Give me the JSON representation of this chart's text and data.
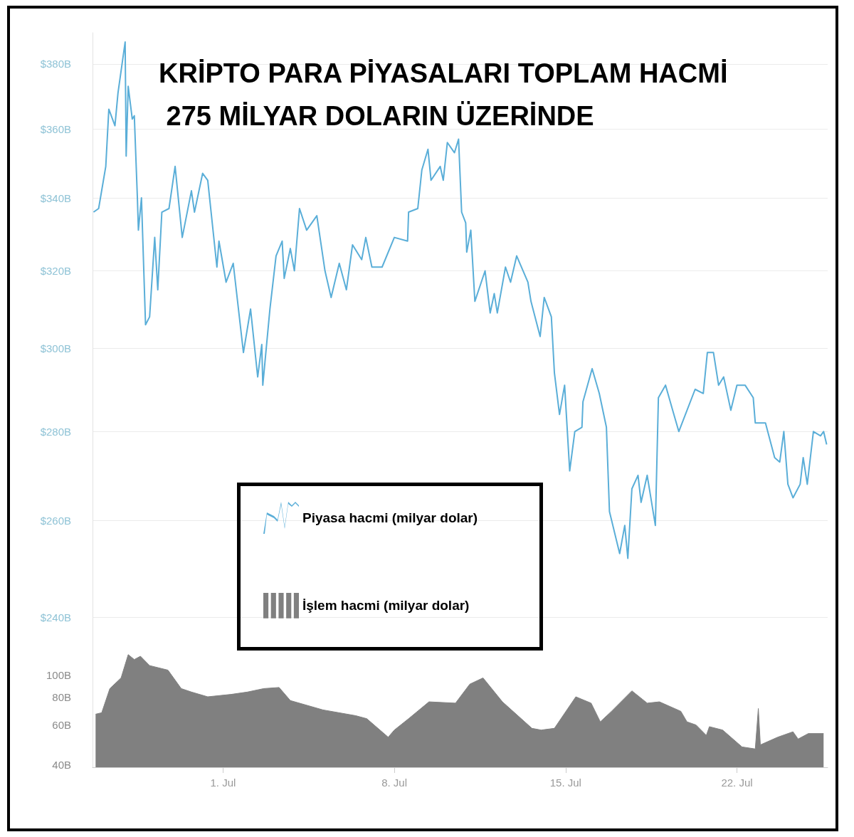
{
  "chart_data": [
    {
      "type": "line",
      "title": "KRİPTO PARA PİYASALARI TOPLAM HACMİ 275 MİLYAR DOLARIN ÜZERİNDE",
      "x": [
        "--06-25T17:00",
        "--06-25T22:00",
        "--06-26T05:00",
        "--06-26T08:00",
        "--06-26T14:00",
        "--06-26T17:00",
        "--06-27T00:00",
        "--06-27T01:00",
        "--06-27T03:00",
        "--06-27T07:00",
        "--06-27T09:00",
        "--06-27T12:00",
        "--06-27T13:00",
        "--06-27T16:00",
        "--06-27T20:00",
        "--06-28T00:00",
        "--06-28T05:00",
        "--06-28T08:00",
        "--06-28T12:00",
        "--06-28T19:00",
        "--06-29T01:00",
        "--06-29T08:00",
        "--06-29T17:00",
        "--06-29T20:00",
        "--06-30T04:00",
        "--06-30T09:00",
        "--06-30T18:00",
        "--06-30T20:00",
        "--07-01T03:00",
        "--07-01T10:00",
        "--07-01T20:00",
        "--07-02T03:00",
        "--07-02T10:00",
        "--07-02T14:00",
        "--07-02T15:00",
        "--07-02T22:00",
        "--07-03T04:00",
        "--07-03T10:00",
        "--07-03T12:00",
        "--07-03T18:00",
        "--07-03T22:00",
        "--07-04T03:00",
        "--07-04T10:00",
        "--07-04T20:00",
        "--07-05T04:00",
        "--07-05T10:00",
        "--07-05T18:00",
        "--07-06T01:00",
        "--07-06T07:00",
        "--07-06T16:00",
        "--07-06T20:00",
        "--07-07T02:00",
        "--07-07T12:00",
        "--07-08T00:00",
        "--07-08T13:00",
        "--07-08T14:00",
        "--07-08T23:00",
        "--07-09T03:00",
        "--07-09T09:00",
        "--07-09T12:00",
        "--07-09T21:00",
        "--07-10T00:00",
        "--07-10T04:00",
        "--07-10T11:00",
        "--07-10T15:00",
        "--07-10T18:00",
        "--07-10T22:00",
        "--07-10T23:00",
        "--07-11T03:00",
        "--07-11T07:00",
        "--07-11T17:00",
        "--07-11T22:00",
        "--07-12T02:00",
        "--07-12T05:00",
        "--07-12T13:00",
        "--07-12T18:00",
        "--07-13T00:00",
        "--07-13T11:00",
        "--07-13T14:00",
        "--07-13T23:00",
        "--07-14T03:00",
        "--07-14T10:00",
        "--07-14T13:00",
        "--07-14T18:00",
        "--07-14T23:00",
        "--07-15T04:00",
        "--07-15T09:00",
        "--07-15T16:00",
        "--07-15T17:00",
        "--07-16T02:00",
        "--07-16T09:00",
        "--07-16T16:00",
        "--07-16T19:00",
        "--07-17T05:00",
        "--07-17T10:00",
        "--07-17T13:00",
        "--07-17T17:00",
        "--07-17T23:00",
        "--07-18T02:00",
        "--07-18T08:00",
        "--07-18T16:00",
        "--07-18T19:00",
        "--07-19T02:00",
        "--07-19T09:00",
        "--07-19T15:00",
        "--07-20T07:00",
        "--07-20T15:00",
        "--07-20T19:00",
        "--07-21T01:00",
        "--07-21T06:00",
        "--07-21T11:00",
        "--07-21T18:00",
        "--07-22T00:00",
        "--07-22T08:00",
        "--07-22T16:00",
        "--07-22T18:00",
        "--07-23T04:00",
        "--07-23T13:00",
        "--07-23T18:00",
        "--07-23T22:00",
        "--07-24T02:00",
        "--07-24T07:00",
        "--07-24T14:00",
        "--07-24T17:00",
        "--07-24T21:00",
        "--07-25T03:00",
        "--07-25T10:00",
        "--07-25T13:00",
        "--07-25T16:00"
      ],
      "series": [
        {
          "name": "Piyasa hacmi (milyar dolar)",
          "color": "#5aaed8",
          "values": [
            336,
            337,
            349,
            366,
            361,
            371,
            387,
            352,
            373,
            363,
            364,
            340,
            331,
            340,
            306,
            308,
            329,
            315,
            336,
            337,
            349,
            329,
            342,
            336,
            347,
            345,
            321,
            328,
            317,
            322,
            299,
            310,
            293,
            301,
            291,
            310,
            324,
            328,
            318,
            326,
            320,
            337,
            331,
            335,
            320,
            313,
            322,
            315,
            327,
            323,
            329,
            321,
            321,
            329,
            328,
            336,
            337,
            348,
            354,
            345,
            349,
            345,
            356,
            353,
            357,
            336,
            333,
            325,
            331,
            312,
            320,
            309,
            314,
            309,
            321,
            317,
            324,
            317,
            312,
            303,
            313,
            308,
            294,
            284,
            291,
            271,
            280,
            281,
            287,
            295,
            289,
            281,
            262,
            253,
            259,
            252,
            267,
            270,
            264,
            270,
            259,
            288,
            291,
            285,
            280,
            290,
            289,
            299,
            299,
            291,
            293,
            285,
            291,
            291,
            288,
            282,
            282,
            274,
            273,
            280,
            268,
            265,
            268,
            274,
            268,
            280,
            279,
            280,
            277
          ]
        }
      ],
      "xlim": [
        "--06-25T16:00",
        "--07-25T17:00"
      ],
      "ylim": [
        240,
        390
      ],
      "yticks": [
        {
          "value": 240,
          "label": "$240B"
        },
        {
          "value": 260,
          "label": "$260B"
        },
        {
          "value": 280,
          "label": "$280B"
        },
        {
          "value": 300,
          "label": "$300B"
        },
        {
          "value": 320,
          "label": "$320B"
        },
        {
          "value": 340,
          "label": "$340B"
        },
        {
          "value": 360,
          "label": "$360B"
        },
        {
          "value": 380,
          "label": "$380B"
        }
      ],
      "log": "y",
      "grid": "y",
      "legend": "bottom left",
      "tick_labels": "y",
      "marker": "none"
    },
    {
      "type": "area",
      "x": [
        "--06-25T19:00",
        "--06-26T01:00",
        "--06-26T09:00",
        "--06-26T20:00",
        "--06-27T03:00",
        "--06-27T09:00",
        "--06-27T15:00",
        "--06-28T00:00",
        "--06-28T18:00",
        "--06-29T07:00",
        "--06-29T17:00",
        "--06-30T09:00",
        "--07-01T08:00",
        "--07-02T00:00",
        "--07-02T16:00",
        "--07-03T07:00",
        "--07-03T18:00",
        "--07-05T02:00",
        "--07-06T10:00",
        "--07-06T21:00",
        "--07-07T18:00",
        "--07-08T00:00",
        "--07-08T14:00",
        "--07-09T10:00",
        "--07-10T12:00",
        "--07-11T02:00",
        "--07-11T15:00",
        "--07-12T10:00",
        "--07-13T15:00",
        "--07-14T00:00",
        "--07-14T13:00",
        "--07-15T10:00",
        "--07-16T01:00",
        "--07-16T10:00",
        "--07-16T21:00",
        "--07-17T17:00",
        "--07-18T08:00",
        "--07-18T20:00",
        "--07-19T17:00",
        "--07-19T23:00",
        "--07-20T08:00",
        "--07-20T18:00",
        "--07-20T21:00",
        "--07-21T10:00",
        "--07-22T05:00",
        "--07-22T18:00",
        "--07-22T21:00",
        "--07-22T23:00",
        "--07-23T16:00",
        "--07-24T07:00",
        "--07-24T12:00",
        "--07-24T22:00",
        "--07-25T13:00"
      ],
      "series": [
        {
          "name": "İşlem hacmi (milyar dolar)",
          "color": "#808080",
          "values": [
            67,
            68,
            87,
            97,
            123,
            117,
            121,
            110,
            105,
            87,
            84,
            80,
            82,
            84,
            87,
            88,
            77,
            70,
            66,
            64,
            53,
            57,
            64,
            76,
            75,
            91,
            97,
            76,
            58,
            57,
            58,
            80,
            75,
            62,
            69,
            85,
            75,
            76,
            69,
            62,
            60,
            54,
            59,
            57,
            48,
            47,
            71,
            49,
            53,
            56,
            52,
            55,
            55
          ]
        }
      ],
      "xlim": [
        "--06-25T16:00",
        "--07-25T17:00"
      ],
      "xticks": [
        {
          "value": "--07-01",
          "label": "1. Jul"
        },
        {
          "value": "--07-08",
          "label": "8. Jul"
        },
        {
          "value": "--07-15",
          "label": "15. Jul"
        },
        {
          "value": "--07-22",
          "label": "22. Jul"
        }
      ],
      "ylim": [
        39,
        183
      ],
      "yticks": [
        {
          "value": 40,
          "label": "40B"
        },
        {
          "value": 60,
          "label": "60B"
        },
        {
          "value": 80,
          "label": "80B"
        },
        {
          "value": 100,
          "label": "100B"
        }
      ],
      "log": "y",
      "grid": false,
      "legend": "top left",
      "marker": "none"
    }
  ]
}
